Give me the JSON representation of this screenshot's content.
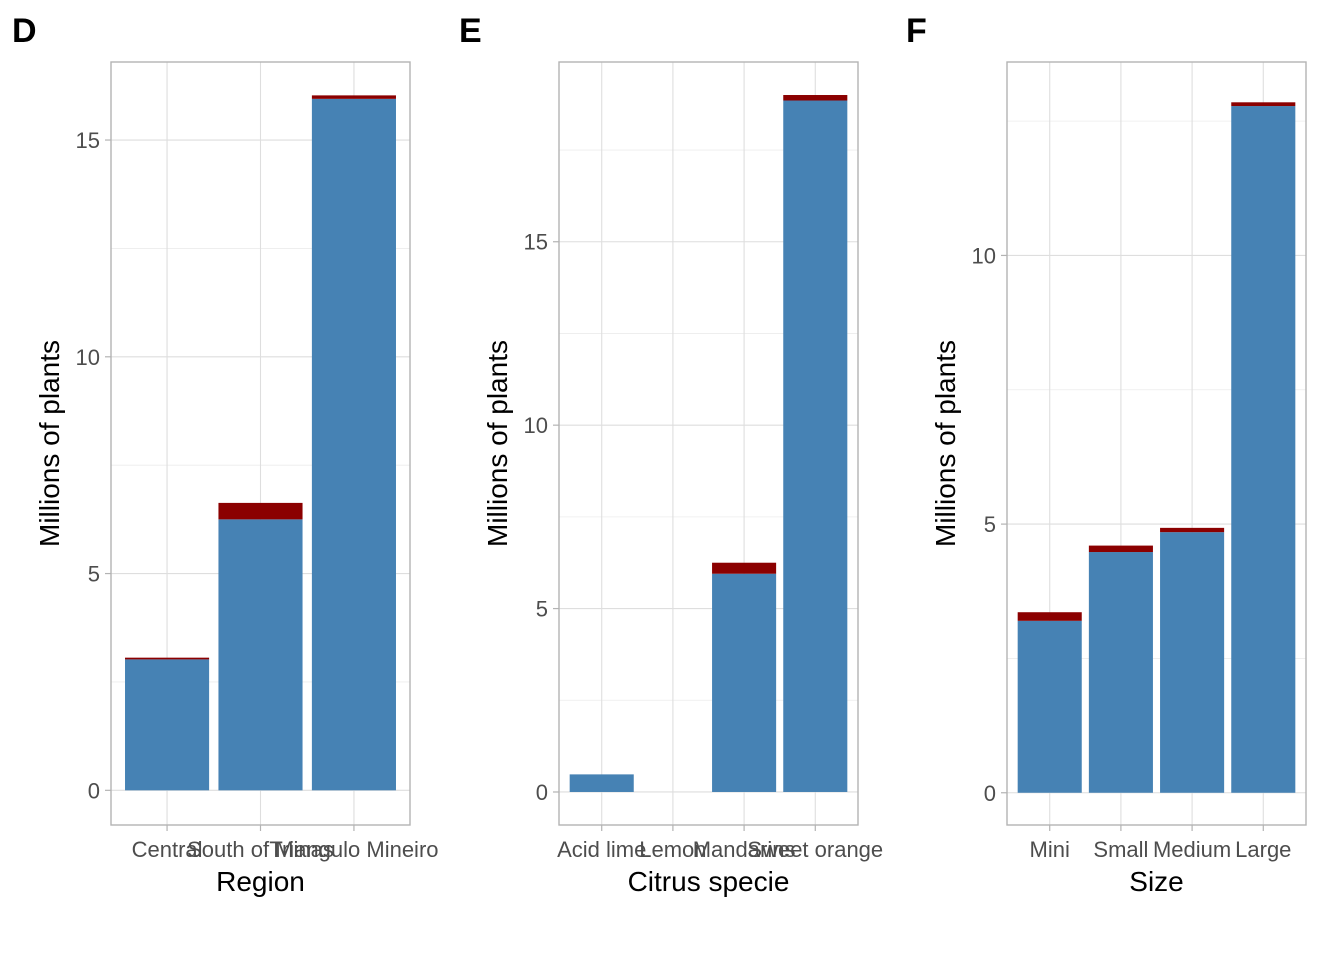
{
  "chart_data": [
    {
      "panel": "D",
      "type": "bar",
      "stacked": true,
      "xlabel": "Region",
      "ylabel": "Millions of plants",
      "categories": [
        "Central",
        "South of Minas",
        "Triangulo Mineiro"
      ],
      "series": [
        {
          "values": [
            3.02,
            6.25,
            15.95
          ],
          "color": "#4682B4"
        },
        {
          "values": [
            0.04,
            0.38,
            0.08
          ],
          "color": "#8B0000"
        }
      ],
      "ylim": [
        -0.8,
        16.8
      ],
      "yticks": [
        0,
        5,
        10,
        15
      ],
      "grid": true
    },
    {
      "panel": "E",
      "type": "bar",
      "stacked": true,
      "xlabel": "Citrus specie",
      "ylabel": "Millions of plants",
      "categories": [
        "Acid lime",
        "Lemon",
        "Mandarins",
        "Sweet orange"
      ],
      "series": [
        {
          "values": [
            0.48,
            0.0,
            5.95,
            18.85
          ],
          "color": "#4682B4"
        },
        {
          "values": [
            0.0,
            0.0,
            0.3,
            0.15
          ],
          "color": "#8B0000"
        }
      ],
      "ylim": [
        -0.9,
        19.9
      ],
      "yticks": [
        0,
        5,
        10,
        15
      ],
      "grid": true
    },
    {
      "panel": "F",
      "type": "bar",
      "stacked": true,
      "xlabel": "Size",
      "ylabel": "Millions of plants",
      "categories": [
        "Mini",
        "Small",
        "Medium",
        "Large"
      ],
      "series": [
        {
          "values": [
            3.2,
            4.48,
            4.85,
            12.78
          ],
          "color": "#4682B4"
        },
        {
          "values": [
            0.16,
            0.12,
            0.08,
            0.07
          ],
          "color": "#8B0000"
        }
      ],
      "ylim": [
        -0.6,
        13.6
      ],
      "yticks": [
        0,
        5,
        10
      ],
      "grid": true
    }
  ]
}
